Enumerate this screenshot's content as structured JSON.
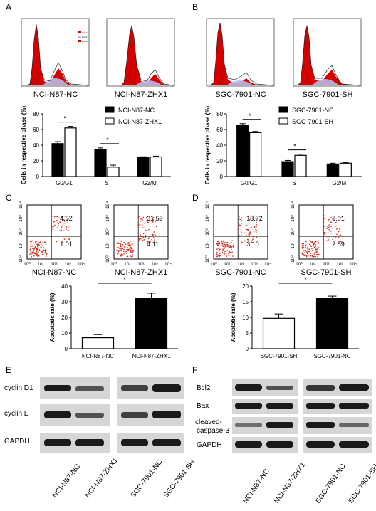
{
  "panels": {
    "A": "A",
    "B": "B",
    "C": "C",
    "D": "D",
    "E": "E",
    "F": "F"
  },
  "flow_cytometry": {
    "histograms": [
      {
        "label": "NCI-N87-NC"
      },
      {
        "label": "NCI-N87-ZHX1"
      },
      {
        "label": "SGC-7901-NC"
      },
      {
        "label": "SGC-7901-SH"
      }
    ],
    "legend_mini": [
      "Dip G1",
      "Dip S",
      "Dip G2"
    ]
  },
  "apoptosis_plots": [
    {
      "label": "NCI-N87-NC",
      "upper_right": "4.52",
      "lower_right": "1.01"
    },
    {
      "label": "NCI-N87-ZHX1",
      "upper_right": "31.59",
      "lower_right": "4.11"
    },
    {
      "label": "SGC-7901-NC",
      "upper_right": "13.72",
      "lower_right": "3.10"
    },
    {
      "label": "SGC-7901-SH",
      "upper_right": "8.01",
      "lower_right": "2.59"
    }
  ],
  "scatter_axis": {
    "tick_labels": [
      "10⁰",
      "10¹",
      "10²",
      "10³",
      "10⁴"
    ]
  },
  "western": {
    "E_rows": [
      "cyclin D1",
      "cyclin E",
      "GAPDH"
    ],
    "F_rows": [
      "Bcl2",
      "Bax",
      "cleaved-",
      "caspase-3",
      "GAPDH"
    ],
    "lanes": [
      "NCI-N87-NC",
      "NCI-N87-ZHX1",
      "SGC-7901-NC",
      "SGC-7901-SH"
    ]
  },
  "chart_data": [
    {
      "type": "bar",
      "ylabel": "Cells in respective phase (%)",
      "categories": [
        "G0/G1",
        "S",
        "G2/M"
      ],
      "ylim": [
        0,
        80
      ],
      "yticks": [
        "0",
        "20",
        "40",
        "60",
        "80"
      ],
      "series": [
        {
          "name": "NCI-N87-NC",
          "values": [
            42,
            34,
            24
          ],
          "errors": [
            2.5,
            2.5,
            1.2
          ],
          "fill": "#000000"
        },
        {
          "name": "NCI-N87-ZHX1",
          "values": [
            62,
            12,
            25
          ],
          "errors": [
            2,
            2.5,
            1
          ],
          "fill": "#ffffff"
        }
      ],
      "significance": [
        "*",
        "*"
      ],
      "legend": "top-right"
    },
    {
      "type": "bar",
      "ylabel": "Cells in respective phase (%)",
      "categories": [
        "G0/G1",
        "S",
        "G2/M"
      ],
      "ylim": [
        0,
        80
      ],
      "yticks": [
        "0",
        "20",
        "40",
        "60",
        "80"
      ],
      "series": [
        {
          "name": "SGC-7901-NC",
          "values": [
            65,
            19,
            16
          ],
          "errors": [
            2.5,
            1.5,
            1
          ],
          "fill": "#000000"
        },
        {
          "name": "SGC-7901-SH",
          "values": [
            56,
            27,
            17
          ],
          "errors": [
            1.5,
            1.5,
            1
          ],
          "fill": "#ffffff"
        }
      ],
      "significance": [
        "*",
        "*"
      ],
      "legend": "top-right"
    },
    {
      "type": "bar",
      "ylabel": "Apoptotic rate (%)",
      "categories": [
        "NCI-N87-NC",
        "NCI-N87-ZHX1"
      ],
      "ylim": [
        0,
        40
      ],
      "yticks": [
        "0",
        "10",
        "20",
        "30",
        "40"
      ],
      "values": [
        7,
        32
      ],
      "errors": [
        2,
        3.5
      ],
      "fills": [
        "#ffffff",
        "#000000"
      ],
      "significance": [
        "*"
      ]
    },
    {
      "type": "bar",
      "ylabel": "Apoptotic rate (%)",
      "categories": [
        "SGC-7901-SH",
        "SGC-7901-NC"
      ],
      "ylim": [
        0,
        20
      ],
      "yticks": [
        "0",
        "5",
        "10",
        "15",
        "20"
      ],
      "values": [
        9.7,
        16
      ],
      "errors": [
        1.4,
        0.8
      ],
      "fills": [
        "#ffffff",
        "#000000"
      ],
      "significance": [
        "*"
      ]
    }
  ]
}
